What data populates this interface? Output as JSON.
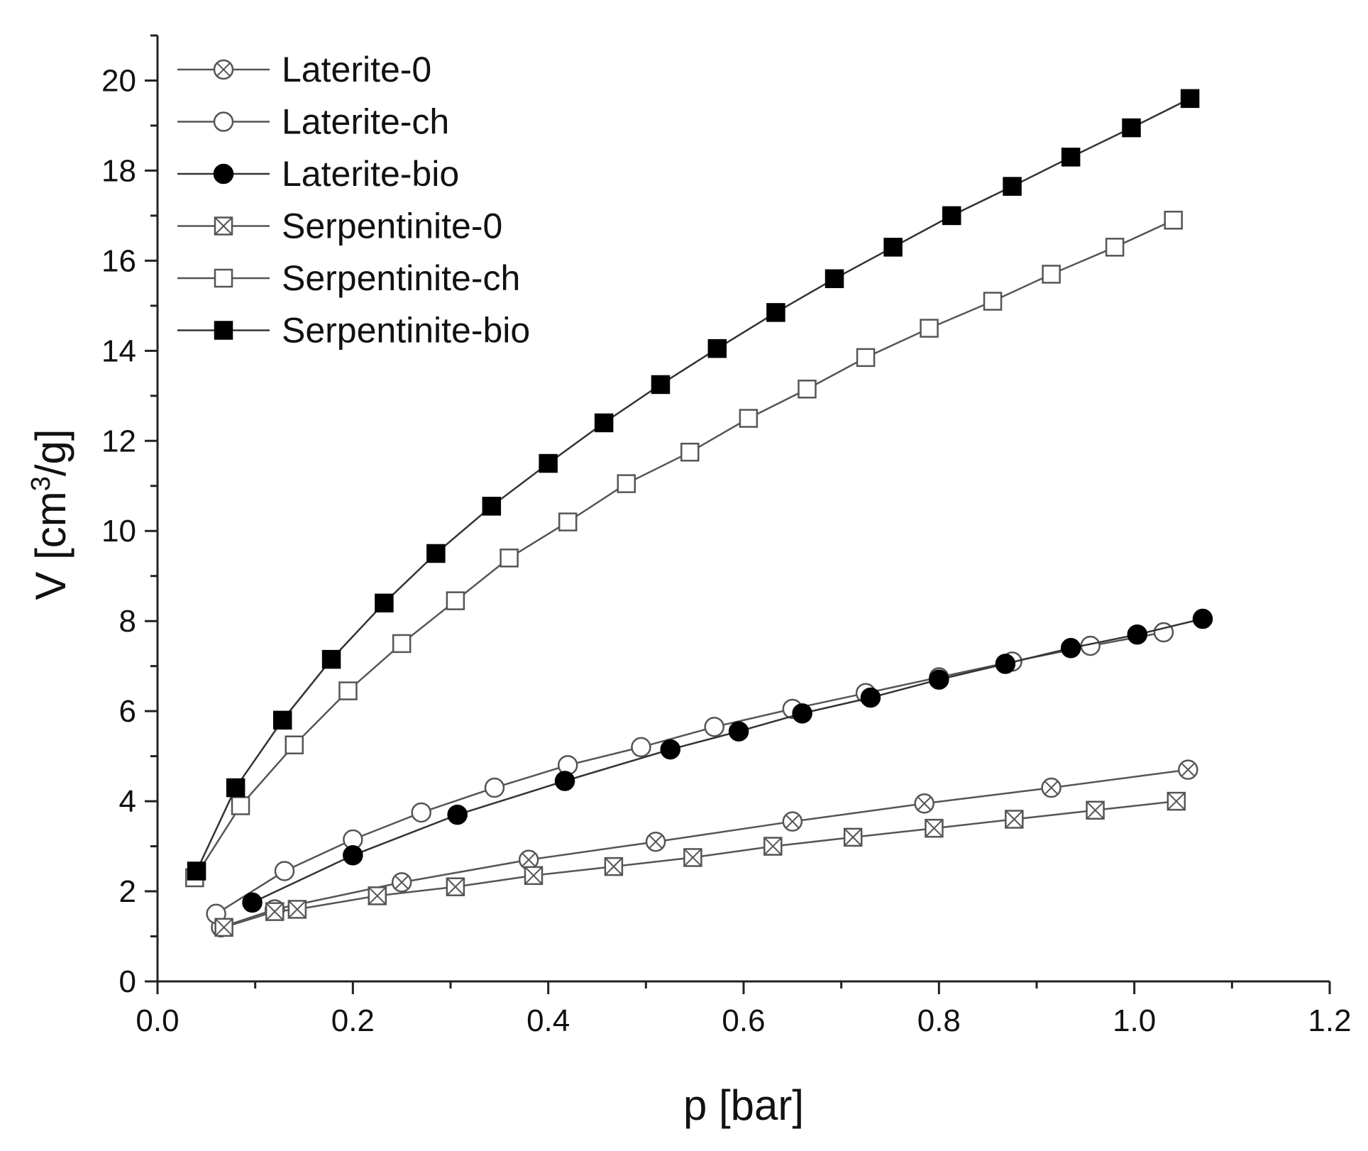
{
  "chart_data": {
    "type": "line",
    "title": "",
    "xlabel": "p [bar]",
    "ylabel": {
      "prefix": "V [cm",
      "sup": "3",
      "suffix": "/g]"
    },
    "xlim": [
      0.0,
      1.2
    ],
    "ylim": [
      0,
      21
    ],
    "x_ticks": [
      "0.0",
      "0.2",
      "0.4",
      "0.6",
      "0.8",
      "1.0",
      "1.2"
    ],
    "y_ticks": [
      "0",
      "2",
      "4",
      "6",
      "8",
      "10",
      "12",
      "14",
      "16",
      "18",
      "20"
    ],
    "grid": false,
    "legend_position": "top-left",
    "series": [
      {
        "name": "Laterite-0",
        "marker": "circle-x",
        "color": "#555555",
        "x": [
          0.065,
          0.12,
          0.25,
          0.38,
          0.51,
          0.65,
          0.785,
          0.915,
          1.055
        ],
        "y": [
          1.2,
          1.6,
          2.2,
          2.7,
          3.1,
          3.55,
          3.95,
          4.3,
          4.7
        ]
      },
      {
        "name": "Laterite-ch",
        "marker": "circle-open",
        "color": "#555555",
        "x": [
          0.06,
          0.13,
          0.2,
          0.27,
          0.345,
          0.42,
          0.495,
          0.57,
          0.65,
          0.725,
          0.8,
          0.875,
          0.955,
          1.03
        ],
        "y": [
          1.5,
          2.45,
          3.15,
          3.75,
          4.3,
          4.8,
          5.2,
          5.65,
          6.05,
          6.4,
          6.75,
          7.1,
          7.45,
          7.75
        ]
      },
      {
        "name": "Laterite-bio",
        "marker": "circle-filled",
        "color": "#333333",
        "x": [
          0.097,
          0.2,
          0.307,
          0.417,
          0.525,
          0.595,
          0.66,
          0.73,
          0.8,
          0.868,
          0.935,
          1.003,
          1.07
        ],
        "y": [
          1.75,
          2.8,
          3.7,
          4.45,
          5.15,
          5.55,
          5.95,
          6.3,
          6.7,
          7.05,
          7.4,
          7.7,
          8.05
        ]
      },
      {
        "name": "Serpentinite-0",
        "marker": "square-x",
        "color": "#555555",
        "x": [
          0.068,
          0.12,
          0.143,
          0.225,
          0.305,
          0.385,
          0.467,
          0.548,
          0.63,
          0.712,
          0.795,
          0.877,
          0.96,
          1.043
        ],
        "y": [
          1.2,
          1.55,
          1.6,
          1.9,
          2.1,
          2.35,
          2.55,
          2.75,
          3.0,
          3.2,
          3.4,
          3.6,
          3.8,
          4.0
        ]
      },
      {
        "name": "Serpentinite-ch",
        "marker": "square-open",
        "color": "#555555",
        "x": [
          0.038,
          0.085,
          0.14,
          0.195,
          0.25,
          0.305,
          0.36,
          0.42,
          0.48,
          0.545,
          0.605,
          0.665,
          0.725,
          0.79,
          0.855,
          0.915,
          0.98,
          1.04
        ],
        "y": [
          2.3,
          3.9,
          5.25,
          6.45,
          7.5,
          8.45,
          9.4,
          10.2,
          11.05,
          11.75,
          12.5,
          13.15,
          13.85,
          14.5,
          15.1,
          15.7,
          16.3,
          16.9
        ]
      },
      {
        "name": "Serpentinite-bio",
        "marker": "square-filled",
        "color": "#333333",
        "x": [
          0.04,
          0.08,
          0.128,
          0.178,
          0.232,
          0.285,
          0.342,
          0.4,
          0.457,
          0.515,
          0.573,
          0.633,
          0.693,
          0.753,
          0.813,
          0.875,
          0.935,
          0.997,
          1.057
        ],
        "y": [
          2.45,
          4.3,
          5.8,
          7.15,
          8.4,
          9.5,
          10.55,
          11.5,
          12.4,
          13.25,
          14.05,
          14.85,
          15.6,
          16.3,
          17.0,
          17.65,
          18.3,
          18.95,
          19.6
        ]
      }
    ]
  }
}
